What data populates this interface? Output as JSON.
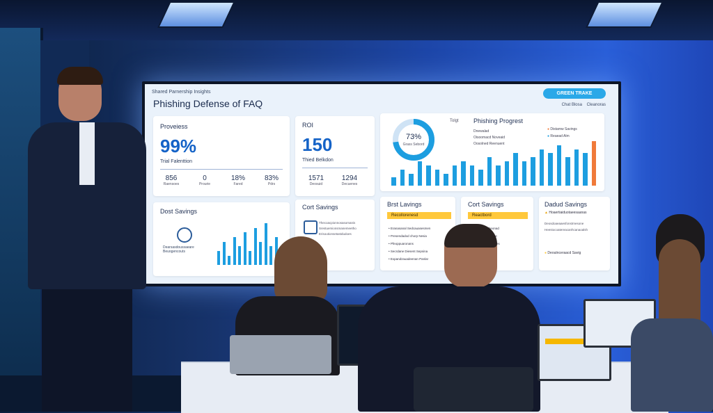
{
  "screen": {
    "top_small": "Shared Parnership Insights",
    "title": "Phishing Defense of FAQ",
    "top_button": "GREEN TRAKE",
    "sublinks": [
      "Chat Blosa",
      "Cleanoras"
    ],
    "card1": {
      "label": "Proveiess",
      "big": "99%",
      "sub": "Trial Falenttion",
      "stats": [
        {
          "v": "856",
          "l": "Raensoes"
        },
        {
          "v": "0",
          "l": "Prourie"
        },
        {
          "v": "18%",
          "l": "Fared"
        },
        {
          "v": "83%",
          "l": "Pdrs"
        }
      ]
    },
    "card2": {
      "label": "ROI",
      "big": "150",
      "sub": "Thied Belkdon",
      "stats": [
        {
          "v": "1571",
          "l": "Deosuid"
        },
        {
          "v": "1294",
          "l": "Decuenes"
        }
      ]
    },
    "donut": {
      "label": "Tolgt",
      "value": "73%",
      "sub": "Grass Sebord"
    },
    "chart1": {
      "title": "Phishing Progrest",
      "legend": [
        "Dnewalad",
        "Oisoomacd Noveaid",
        "Oosolned Reenuent"
      ],
      "legend2": [
        "Distamw Savings",
        "Reaead Alm"
      ],
      "values": [
        2,
        4,
        3,
        6,
        5,
        4,
        3,
        5,
        6,
        5,
        4,
        7,
        5,
        6,
        8,
        6,
        7,
        9,
        8,
        10,
        7,
        9,
        8,
        11
      ]
    },
    "card3": {
      "label": "Dost Savings",
      "icon_text": "Dearsasdoussaeare Beuogencouts",
      "values": [
        3,
        5,
        2,
        6,
        4,
        7,
        3,
        8,
        5,
        9,
        4,
        6
      ]
    },
    "card4": {
      "label": "Cort Savings",
      "lines": [
        "Thecoacpionnosasomanis",
        "Srestuemionsmanemeetho",
        "Erisoutionsetastdudoes"
      ]
    },
    "card5": {
      "label": "Brst Lavings",
      "tag": "Recollorenesd",
      "items": [
        "Eranasanal Sedcauasesmen",
        "Presendadod chorp Nesia",
        "Pfeoppuaronans",
        "Secrdane Diesent Sepsina",
        "Expandzauadeenan Panlar"
      ]
    },
    "card6": {
      "label": "Cort Savings",
      "tag": "Reactbord",
      "items": [
        "Reatosteno Deonad",
        "Sandrfontondeane",
        "Recauderoatedrates"
      ]
    },
    "card7": {
      "label": "Dadud Savings",
      "warn": "Hoaertiaiduotaeesaanas",
      "items": [
        "Deosdoaeaaesfonstrnesone",
        "Heestocoatereacanhcanaoalsh"
      ],
      "footer": "Deoutnceraacd Savig"
    }
  },
  "colors": {
    "accent": "#1d9ee0",
    "brand": "#1563c7",
    "tag": "#ffc83b",
    "orange": "#f07a3a"
  }
}
